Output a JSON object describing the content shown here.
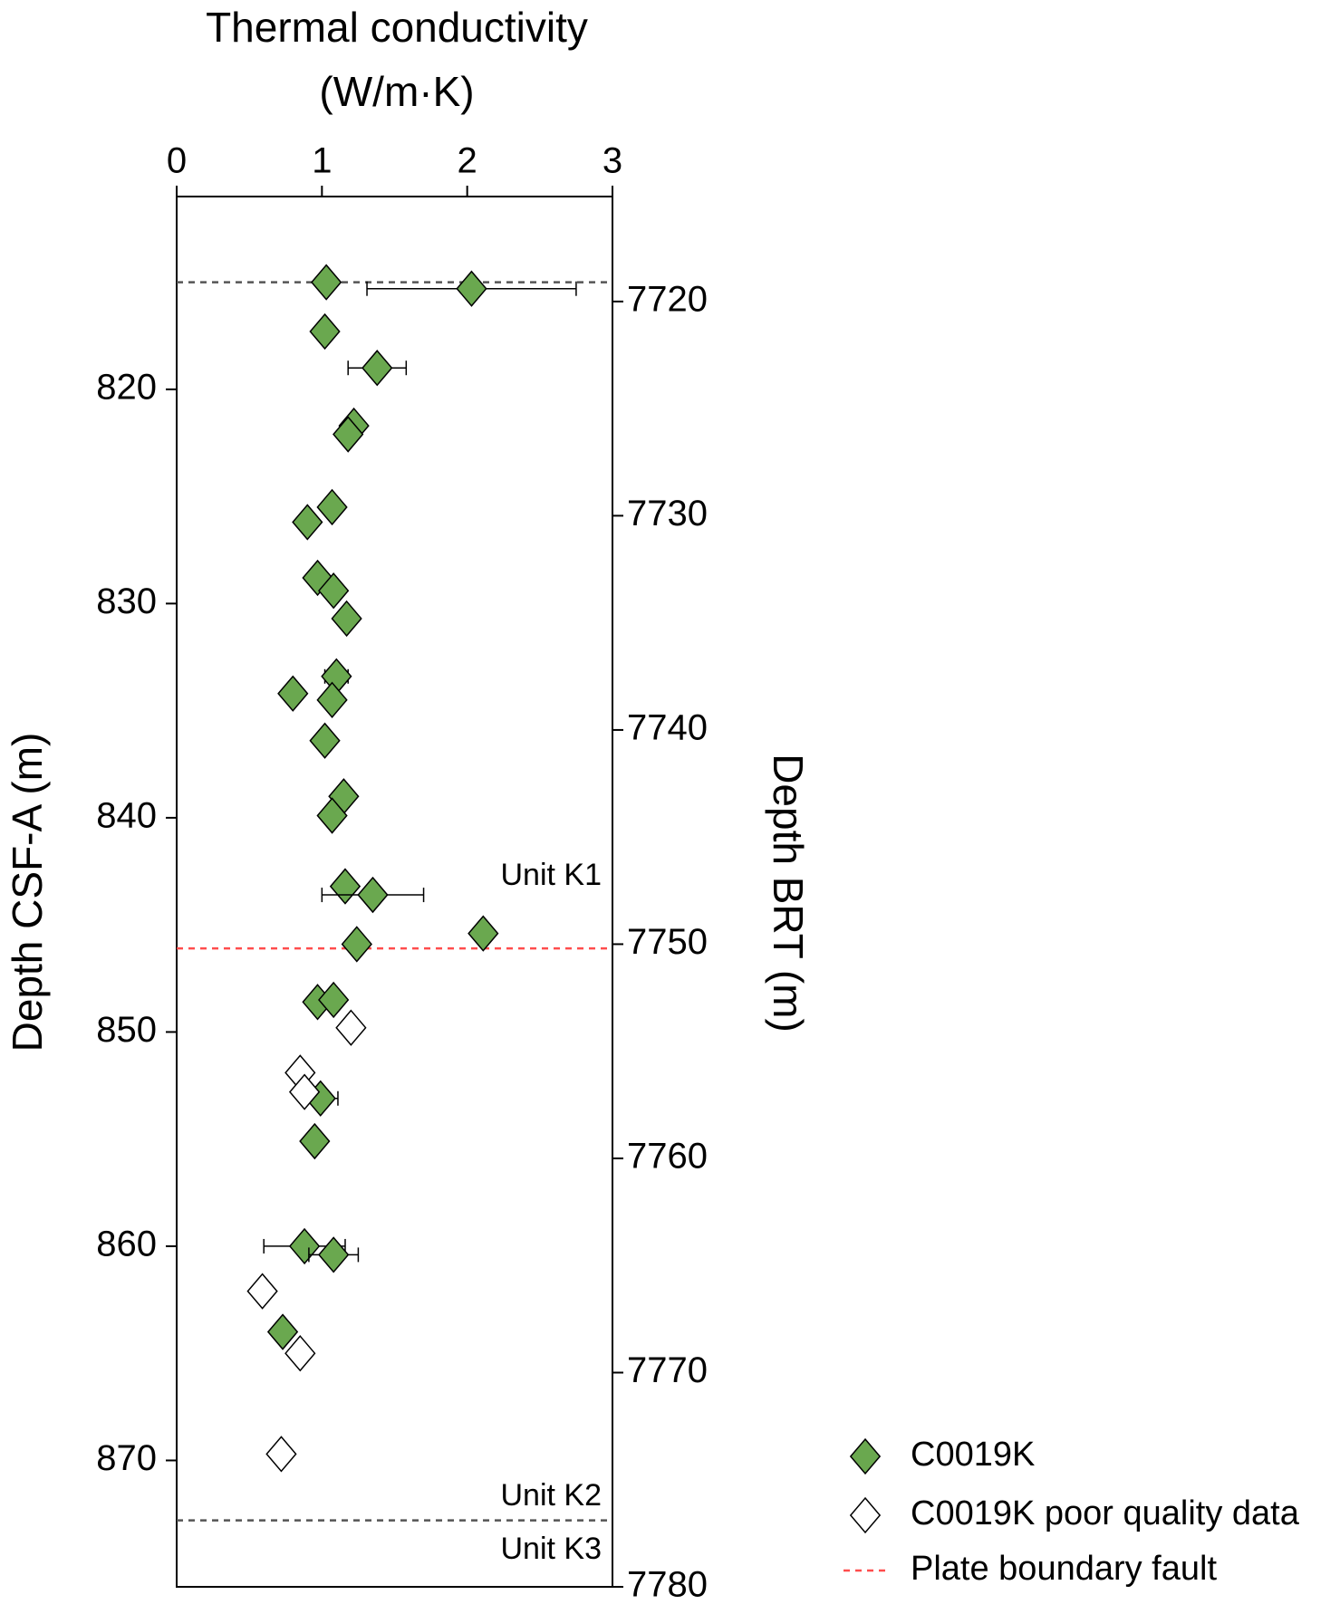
{
  "chart_data": {
    "type": "scatter",
    "xlabel": [
      "Thermal conductivity",
      "(W/m·K)"
    ],
    "ylabel": "Depth CSF-A (m)",
    "y2label": "Depth BRT (m)",
    "xlim": [
      0,
      3
    ],
    "xticks": [
      0,
      1,
      2,
      3
    ],
    "ylim": [
      811,
      875.9
    ],
    "yticks": [
      820,
      830,
      840,
      850,
      860,
      870
    ],
    "y_inverted": true,
    "y2lim": [
      7715.1,
      7780
    ],
    "y2ticks": [
      7720,
      7730,
      7740,
      7750,
      7760,
      7770,
      7780
    ],
    "series": [
      {
        "name": "C0019K",
        "color": "#6aa84f",
        "filled": true,
        "x": [
          1.03,
          2.03,
          1.02,
          1.38,
          1.22,
          1.18,
          1.07,
          0.9,
          0.97,
          1.08,
          1.17,
          1.1,
          0.8,
          1.07,
          1.02,
          1.15,
          1.07,
          1.16,
          1.35,
          2.11,
          1.24,
          0.97,
          1.08,
          0.99,
          0.95,
          0.88,
          1.08,
          0.73
        ],
        "values": [
          815.0,
          815.3,
          817.3,
          819.0,
          821.7,
          822.1,
          825.5,
          826.2,
          828.8,
          829.4,
          830.7,
          833.4,
          834.2,
          834.5,
          836.4,
          839.0,
          839.9,
          843.2,
          843.6,
          845.4,
          845.9,
          848.6,
          848.5,
          853.1,
          855.1,
          860.0,
          860.4,
          864.0
        ],
        "xerr": [
          null,
          0.72,
          null,
          0.2,
          null,
          null,
          null,
          null,
          null,
          null,
          null,
          0.08,
          0.05,
          null,
          null,
          null,
          null,
          null,
          0.35,
          null,
          null,
          null,
          null,
          0.12,
          null,
          0.28,
          0.17,
          null
        ]
      },
      {
        "name": "C0019K poor quality data",
        "color": "#ffffff",
        "filled": false,
        "x": [
          1.2,
          0.85,
          0.88,
          0.59,
          0.85,
          0.72
        ],
        "values": [
          849.8,
          851.9,
          852.8,
          862.1,
          865.0,
          869.7
        ]
      }
    ],
    "hlines": [
      {
        "y": 815.0,
        "color": "#555555"
      },
      {
        "y": 846.1,
        "color": "#ff4d4d",
        "name": "Plate boundary fault"
      },
      {
        "y": 872.8,
        "color": "#555555"
      }
    ],
    "annotations": [
      "Unit K1",
      "Unit K2",
      "Unit K3"
    ]
  }
}
